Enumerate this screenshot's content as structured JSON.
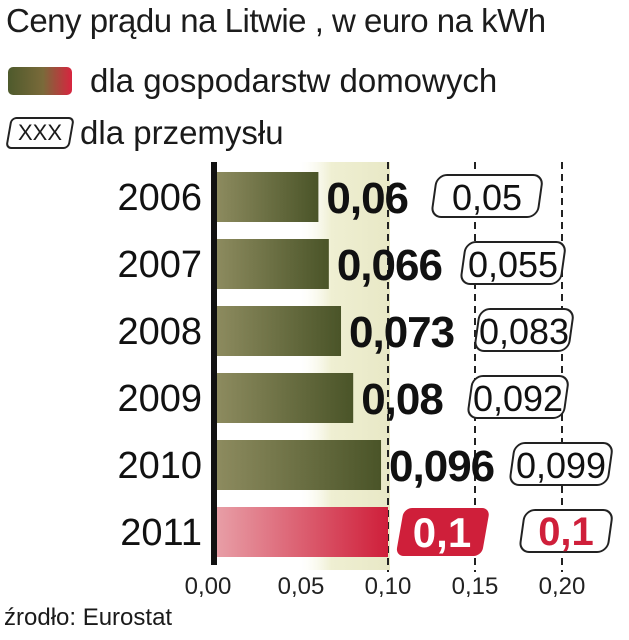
{
  "title": "Ceny prądu na Litwie , w euro na kWh",
  "legend": {
    "households_label": "dla gospodarstw domowych",
    "industry_swatch_text": "XXX",
    "industry_label": "dla przemysłu"
  },
  "source": "źrodło: Eurostat",
  "colors": {
    "bar_olive_dark": "#4a5428",
    "bar_olive_light": "#8a8a5a",
    "bar_red": "#d0243c",
    "highlight_bg": "#efefd2"
  },
  "chart_data": {
    "type": "bar",
    "orientation": "horizontal",
    "categories": [
      "2006",
      "2007",
      "2008",
      "2009",
      "2010",
      "2011"
    ],
    "series": [
      {
        "name": "dla gospodarstw domowych",
        "values": [
          0.06,
          0.066,
          0.073,
          0.08,
          0.096,
          0.1
        ],
        "labels": [
          "0,06",
          "0,066",
          "0,073",
          "0,08",
          "0,096",
          "0,1"
        ]
      },
      {
        "name": "dla przemysłu",
        "values": [
          0.05,
          0.055,
          0.083,
          0.092,
          0.099,
          0.1
        ],
        "labels": [
          "0,05",
          "0,055",
          "0,083",
          "0,092",
          "0,099",
          "0,1"
        ]
      }
    ],
    "xlim": [
      0,
      0.2
    ],
    "x_ticks": [
      "0,00",
      "0,05",
      "0,10",
      "0,15",
      "0,20"
    ],
    "grid": "dashed vertical at 0,10 0,15 0,20"
  }
}
